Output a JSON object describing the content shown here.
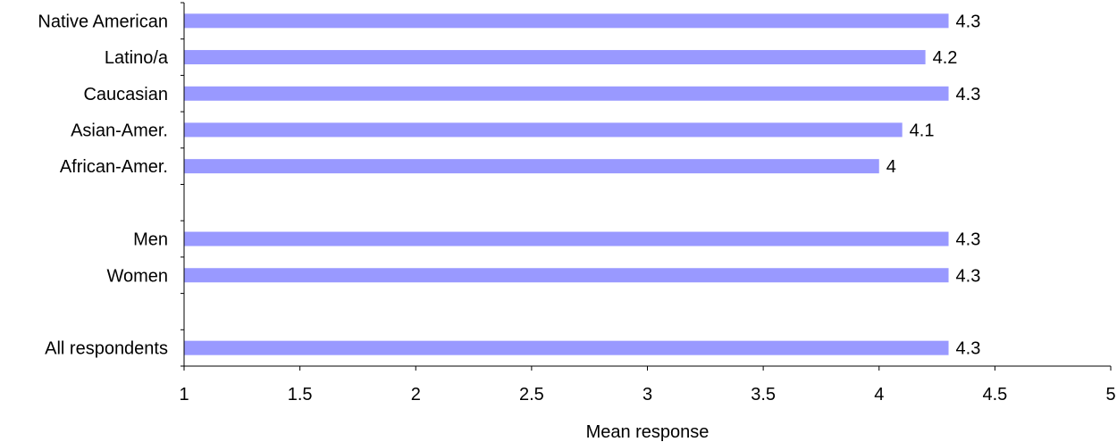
{
  "chart_data": {
    "type": "bar",
    "orientation": "horizontal",
    "categories": [
      "Native American",
      "Latino/a",
      "Caucasian",
      "Asian-Amer.",
      "African-Amer.",
      "",
      "Men",
      "Women",
      "",
      "All respondents"
    ],
    "values": [
      4.3,
      4.2,
      4.3,
      4.1,
      4.0,
      null,
      4.3,
      4.3,
      null,
      4.3
    ],
    "data_labels": [
      "4.3",
      "4.2",
      "4.3",
      "4.1",
      "4",
      null,
      "4.3",
      "4.3",
      null,
      "4.3"
    ],
    "xlabel": "Mean response",
    "ylabel": "",
    "title": "",
    "xlim": [
      1,
      5
    ],
    "x_ticks": [
      1,
      1.5,
      2,
      2.5,
      3,
      3.5,
      4,
      4.5,
      5
    ],
    "x_tick_labels": [
      "1",
      "1.5",
      "2",
      "2.5",
      "3",
      "3.5",
      "4",
      "4.5",
      "5"
    ],
    "grid": false,
    "legend": "none",
    "bar_color": "#9999FF"
  }
}
